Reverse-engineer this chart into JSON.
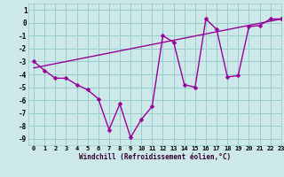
{
  "windchill_x": [
    0,
    1,
    2,
    3,
    4,
    5,
    6,
    7,
    8,
    9,
    10,
    11,
    12,
    13,
    14,
    15,
    16,
    17,
    18,
    19,
    20,
    21,
    22,
    23
  ],
  "windchill_y": [
    -3.0,
    -3.7,
    -4.3,
    -4.3,
    -4.8,
    -5.2,
    -5.9,
    -8.3,
    -6.3,
    -8.9,
    -7.5,
    -6.5,
    -1.0,
    -1.5,
    -4.8,
    -5.0,
    0.3,
    -0.5,
    -4.2,
    -4.1,
    -0.3,
    -0.2,
    0.3,
    0.3
  ],
  "trend_x": [
    0,
    23
  ],
  "trend_y": [
    -3.5,
    0.3
  ],
  "background_color": "#cce8e8",
  "grid_color": "#99cccc",
  "line_color": "#990099",
  "xlabel": "Windchill (Refroidissement éolien,°C)",
  "xlim": [
    -0.5,
    23
  ],
  "ylim": [
    -9.5,
    1.5
  ],
  "xticks": [
    0,
    1,
    2,
    3,
    4,
    5,
    6,
    7,
    8,
    9,
    10,
    11,
    12,
    13,
    14,
    15,
    16,
    17,
    18,
    19,
    20,
    21,
    22,
    23
  ],
  "yticks": [
    1,
    0,
    -1,
    -2,
    -3,
    -4,
    -5,
    -6,
    -7,
    -8,
    -9
  ]
}
